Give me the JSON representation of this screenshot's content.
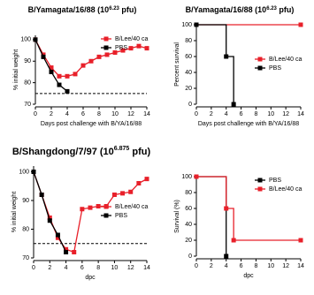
{
  "chart_data": [
    {
      "type": "line",
      "title": [
        "B/Yamagata/16/88 (10",
        "6.23",
        " pfu)"
      ],
      "ylabel": "% initial weight",
      "xlabel": "Days post challenge with B/YA/16/88",
      "xlim": [
        0,
        14
      ],
      "xticks": [
        0,
        2,
        4,
        6,
        8,
        10,
        12,
        14
      ],
      "ylim": [
        70,
        102
      ],
      "yticks": [
        70,
        80,
        90,
        100
      ],
      "threshold": 75,
      "legend": "upper right",
      "series": [
        {
          "name": "B/Lee/40 ca",
          "color": "#e8202a",
          "x": [
            0,
            1,
            2,
            3,
            4,
            5,
            6,
            7,
            8,
            9,
            10,
            11,
            12,
            13,
            14
          ],
          "values": [
            100,
            93,
            87,
            83,
            83,
            84,
            88,
            90,
            92,
            93,
            94,
            95,
            96,
            97,
            96
          ]
        },
        {
          "name": "PBS",
          "color": "#000000",
          "x": [
            0,
            1,
            2,
            3,
            4
          ],
          "values": [
            100,
            92,
            85,
            79,
            76
          ]
        }
      ]
    },
    {
      "type": "step",
      "title": [
        "B/Yamagata/16/88 (10",
        "6.23",
        " pfu)"
      ],
      "ylabel": "Percent survival",
      "xlabel": "Days post challenge with B/YA/16/88",
      "xlim": [
        0,
        14
      ],
      "xticks": [
        0,
        2,
        4,
        6,
        8,
        10,
        12,
        14
      ],
      "ylim": [
        0,
        100
      ],
      "yticks": [
        0,
        20,
        40,
        60,
        80,
        100
      ],
      "legend": "center right",
      "series": [
        {
          "name": "B/Lee/40 ca",
          "color": "#e8202a",
          "x": [
            0,
            14
          ],
          "values": [
            100,
            100
          ]
        },
        {
          "name": "PBS",
          "color": "#000000",
          "x": [
            0,
            4,
            5
          ],
          "values": [
            100,
            60,
            0
          ]
        }
      ]
    },
    {
      "type": "line",
      "title": [
        "B/Shangdong/7/97 (10",
        "6.875",
        " pfu)"
      ],
      "ylabel": "% initial weight",
      "xlabel": "dpc",
      "xlim": [
        0,
        14
      ],
      "xticks": [
        0,
        2,
        4,
        6,
        8,
        10,
        12,
        14
      ],
      "ylim": [
        70,
        102
      ],
      "yticks": [
        70,
        80,
        90,
        100
      ],
      "threshold": 75,
      "legend": "center right",
      "series": [
        {
          "name": "B/Lee/40 ca",
          "color": "#e8202a",
          "x": [
            0,
            1,
            2,
            3,
            4,
            5,
            6,
            7,
            8,
            9,
            10,
            11,
            12,
            13,
            14
          ],
          "values": [
            100,
            92,
            84,
            77,
            73,
            72,
            87,
            87.5,
            88,
            88,
            92,
            92.5,
            93,
            96,
            97.5
          ]
        },
        {
          "name": "PBS",
          "color": "#000000",
          "x": [
            0,
            1,
            2,
            3,
            4
          ],
          "values": [
            100,
            92,
            83,
            78,
            72
          ]
        }
      ]
    },
    {
      "type": "step",
      "ylabel": "Survival (%)",
      "xlabel": "dpc",
      "xlim": [
        0,
        14
      ],
      "xticks": [
        0,
        2,
        4,
        6,
        8,
        10,
        12,
        14
      ],
      "ylim": [
        0,
        100
      ],
      "yticks": [
        0,
        20,
        40,
        60,
        80,
        100
      ],
      "legend": "upper right",
      "series": [
        {
          "name": "PBS",
          "color": "#000000",
          "x": [
            0,
            4
          ],
          "values": [
            100,
            0
          ]
        },
        {
          "name": "B/Lee/40 ca",
          "color": "#e8202a",
          "x": [
            0,
            4,
            5,
            14
          ],
          "values": [
            100,
            60,
            20,
            20
          ]
        }
      ]
    }
  ]
}
